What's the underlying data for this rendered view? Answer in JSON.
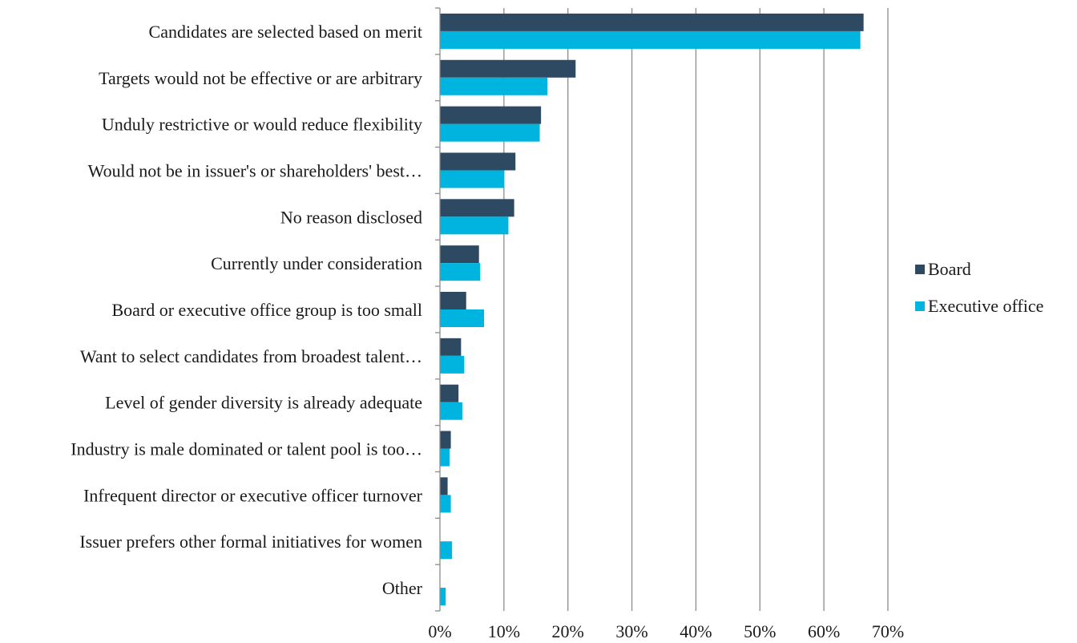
{
  "chart_data": {
    "type": "bar",
    "orientation": "horizontal",
    "title": "",
    "xlabel": "",
    "ylabel": "",
    "xlim": [
      0,
      70
    ],
    "x_ticks": [
      "0%",
      "10%",
      "20%",
      "30%",
      "40%",
      "50%",
      "60%",
      "70%"
    ],
    "grid": "vertical",
    "legend_position": "right",
    "categories": [
      "Candidates are selected based on merit",
      "Targets would not be effective or are arbitrary",
      "Unduly restrictive or would reduce flexibility",
      "Would not be in issuer's or shareholders' best…",
      "No reason disclosed",
      "Currently under consideration",
      "Board or executive office group is too small",
      "Want to select candidates from broadest talent…",
      "Level of gender diversity is already adequate",
      "Industry is male dominated or talent pool is too…",
      "Infrequent director or executive officer turnover",
      "Issuer prefers other formal initiatives for women",
      "Other"
    ],
    "series": [
      {
        "name": "Board",
        "color": "#2e4a62",
        "values": [
          66.2,
          21.2,
          15.8,
          11.8,
          11.6,
          6.1,
          4.1,
          3.3,
          2.9,
          1.7,
          1.2,
          0,
          0
        ]
      },
      {
        "name": "Executive office",
        "color": "#00b4e0",
        "values": [
          65.7,
          16.8,
          15.6,
          10.0,
          10.7,
          6.3,
          6.9,
          3.8,
          3.5,
          1.5,
          1.7,
          1.9,
          0.9
        ]
      }
    ]
  }
}
